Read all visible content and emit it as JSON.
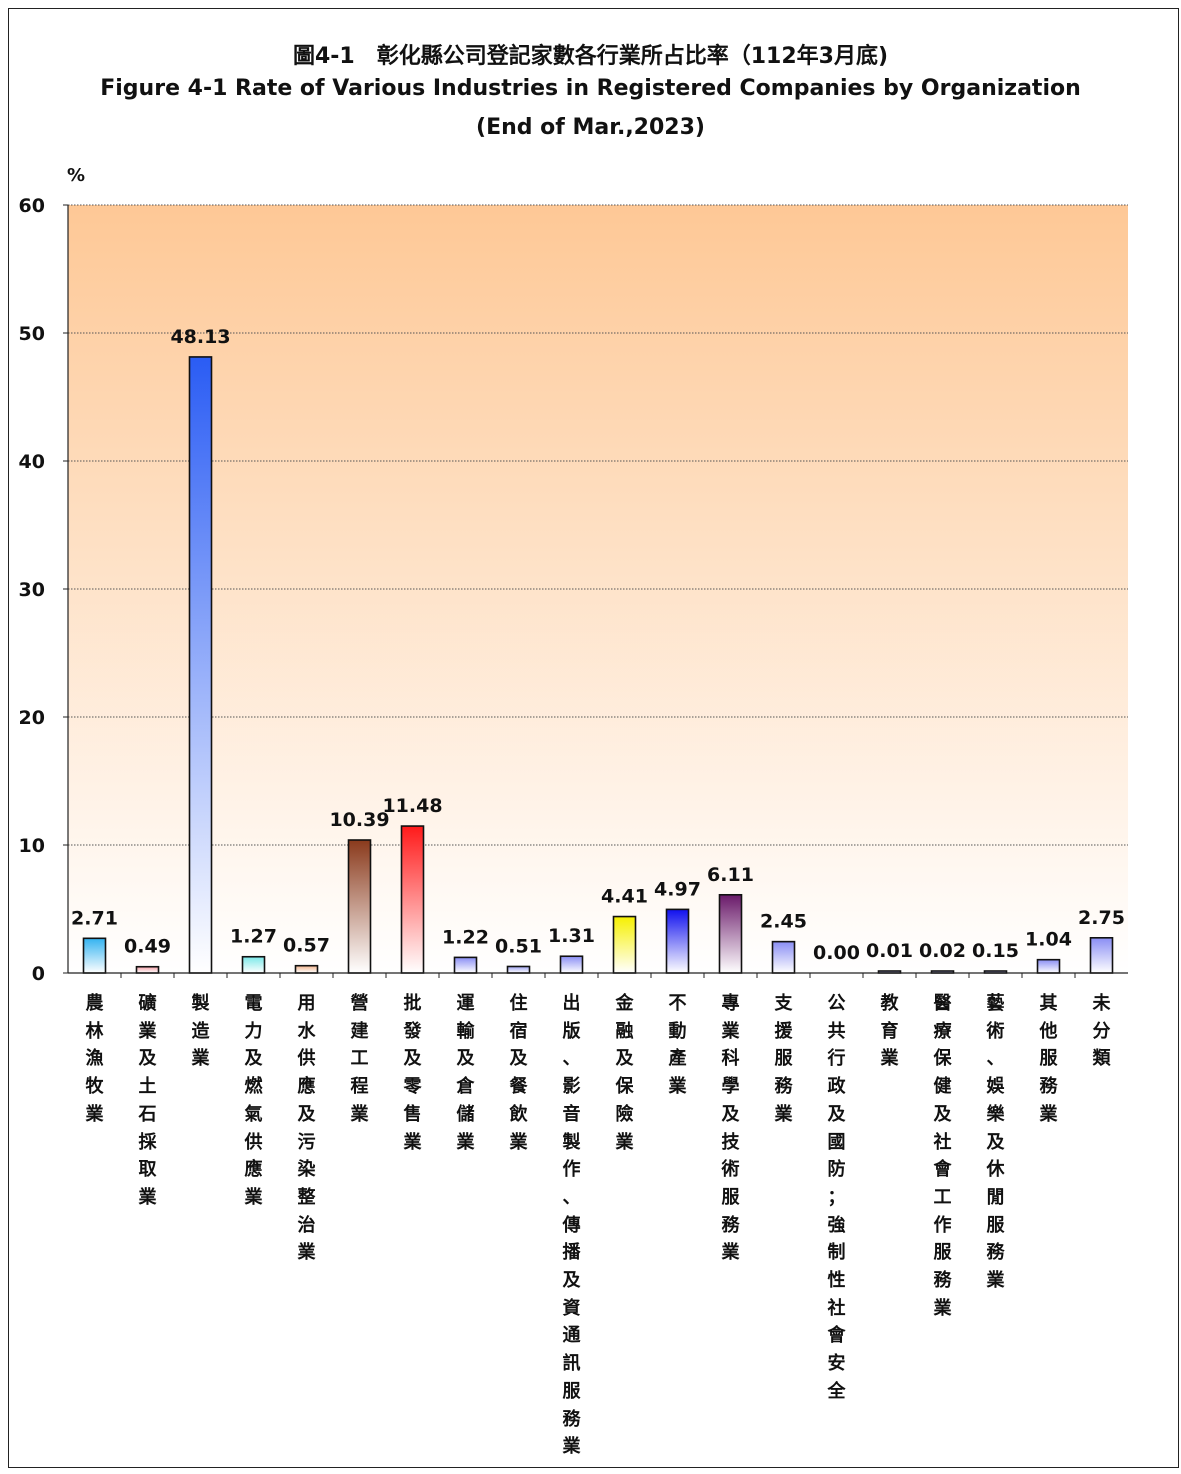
{
  "chart_data": {
    "type": "bar",
    "title": "圖4-1　彰化縣公司登記家數各行業所占比率（112年3月底)",
    "subtitle_line1": "Figure 4-1  Rate of Various Industries in Registered Companies by Organization",
    "subtitle_line2": "(End of Mar.,2023)",
    "ylabel": "%",
    "ylim": [
      0,
      60
    ],
    "yticks": [
      "0",
      "10",
      "20",
      "30",
      "40",
      "50",
      "60"
    ],
    "grid": true,
    "categories": [
      "農林漁牧業",
      "礦業及土石採取業",
      "製造業",
      "電力及燃氣供應業",
      "用水供應及污染整治業",
      "營建工程業",
      "批發及零售業",
      "運輸及倉儲業",
      "住宿及餐飲業",
      "出版、影音製作、傳播及資通訊服務業",
      "金融及保險業",
      "不動產業",
      "專業科學及技術服務業",
      "支援服務業",
      "公共行政及國防；強制性社會安全",
      "教育業",
      "醫療保健及社會工作服務業",
      "藝術、娛樂及休閒服務業",
      "其他服務業",
      "未分類"
    ],
    "values": [
      2.71,
      0.49,
      48.13,
      1.27,
      0.57,
      10.39,
      11.48,
      1.22,
      0.51,
      1.31,
      4.41,
      4.97,
      6.11,
      2.45,
      0.0,
      0.01,
      0.02,
      0.15,
      1.04,
      2.75
    ],
    "value_labels": [
      "2.71",
      "0.49",
      "48.13",
      "1.27",
      "0.57",
      "10.39",
      "11.48",
      "1.22",
      "0.51",
      "1.31",
      "4.41",
      "4.97",
      "6.11",
      "2.45",
      "0.00",
      "0.01",
      "0.02",
      "0.15",
      "1.04",
      "2.75"
    ],
    "bar_colors": [
      "#33b3f0",
      "#f4a0a8",
      "#2a5cf4",
      "#7ae8e8",
      "#f2b48c",
      "#8a3a1c",
      "#ff1a1a",
      "#8a8ef4",
      "#a0a4f2",
      "#8a8ef4",
      "#f6f000",
      "#1010ee",
      "#6a1a6a",
      "#8a8ef4",
      "#8a8ef4",
      "#8a8ef4",
      "#8a8ef4",
      "#8a8ef4",
      "#8a8ef4",
      "#8a8ef4"
    ],
    "plot_background": [
      "#fec896",
      "#ffffff"
    ]
  }
}
